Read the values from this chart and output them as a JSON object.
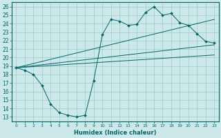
{
  "title": "",
  "xlabel": "Humidex (Indice chaleur)",
  "bg_color": "#cce8e8",
  "grid_color": "#99cccc",
  "line_color": "#006666",
  "xlim": [
    -0.5,
    23.5
  ],
  "ylim": [
    12.5,
    26.5
  ],
  "yticks": [
    13,
    14,
    15,
    16,
    17,
    18,
    19,
    20,
    21,
    22,
    23,
    24,
    25,
    26
  ],
  "xticks": [
    0,
    1,
    2,
    3,
    4,
    5,
    6,
    7,
    8,
    9,
    10,
    11,
    12,
    13,
    14,
    15,
    16,
    17,
    18,
    19,
    20,
    21,
    22,
    23
  ],
  "wavy_x": [
    0,
    1,
    2,
    3,
    4,
    5,
    6,
    7,
    8,
    9,
    10,
    11,
    12,
    13,
    14,
    15,
    16,
    17,
    18,
    19,
    20,
    21,
    22,
    23
  ],
  "wavy_y": [
    18.8,
    18.5,
    18.0,
    16.7,
    14.5,
    13.5,
    13.2,
    13.0,
    13.2,
    17.3,
    22.7,
    24.5,
    24.3,
    23.8,
    23.9,
    25.3,
    26.0,
    25.0,
    25.2,
    24.1,
    23.8,
    22.8,
    21.9,
    21.7
  ],
  "line1_x": [
    0,
    23
  ],
  "line1_y": [
    18.8,
    24.5
  ],
  "line2_x": [
    0,
    23
  ],
  "line2_y": [
    18.8,
    21.5
  ],
  "line3_x": [
    0,
    23
  ],
  "line3_y": [
    18.8,
    20.3
  ]
}
